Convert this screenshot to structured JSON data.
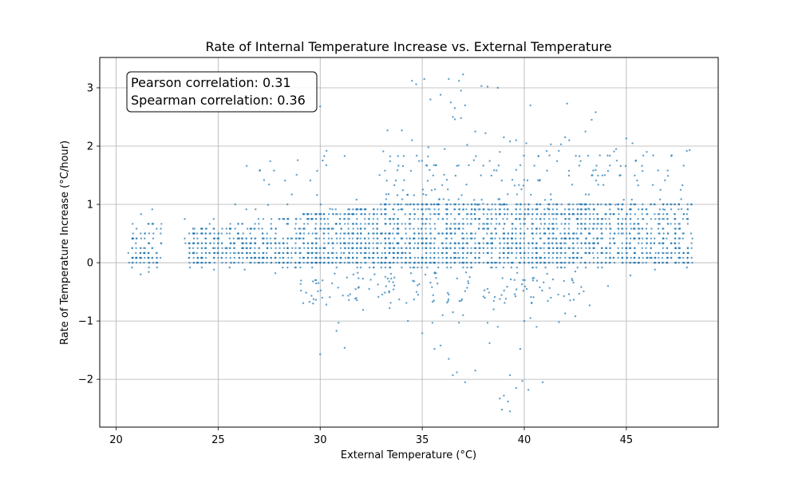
{
  "chart_data": {
    "type": "scatter",
    "title": "Rate of Internal Temperature Increase vs. External Temperature",
    "xlabel": "External Temperature (°C)",
    "ylabel": "Rate of Temperature Increase (°C/hour)",
    "xlim": [
      19.2,
      49.5
    ],
    "ylim": [
      -2.82,
      3.52
    ],
    "xticks": [
      20,
      25,
      30,
      35,
      40,
      45
    ],
    "yticks": [
      -2,
      -1,
      0,
      1,
      2,
      3
    ],
    "xtick_labels": [
      "20",
      "25",
      "30",
      "35",
      "40",
      "45"
    ],
    "ytick_labels": [
      "−2",
      "−1",
      "0",
      "1",
      "2",
      "3"
    ],
    "grid": true,
    "point_color": "#1f77b4",
    "annotation": {
      "line1": "Pearson correlation: 0.31",
      "line2": "Spearman correlation: 0.36",
      "placement": "top-left"
    },
    "series_distribution": {
      "x_ranges": [
        [
          20.6,
          22.2
        ],
        [
          23.4,
          48.2
        ]
      ],
      "y_levels_step": 0.0833,
      "dense_band": [
        0,
        1.0
      ]
    },
    "points": [
      [
        37.0,
        3.23
      ],
      [
        34.5,
        3.12
      ],
      [
        34.7,
        3.06
      ],
      [
        35.1,
        3.15
      ],
      [
        36.3,
        3.15
      ],
      [
        36.8,
        3.12
      ],
      [
        37.9,
        3.03
      ],
      [
        38.2,
        3.02
      ],
      [
        38.7,
        3.0
      ],
      [
        36.9,
        2.95
      ],
      [
        35.9,
        2.88
      ],
      [
        36.4,
        2.75
      ],
      [
        35.4,
        2.8
      ],
      [
        36.6,
        2.65
      ],
      [
        37.1,
        2.7
      ],
      [
        40.3,
        2.7
      ],
      [
        42.1,
        2.73
      ],
      [
        43.5,
        2.58
      ],
      [
        43.3,
        2.45
      ],
      [
        36.5,
        2.5
      ],
      [
        36.9,
        2.48
      ],
      [
        36.6,
        2.46
      ],
      [
        30.0,
        2.68
      ],
      [
        34.0,
        2.27
      ],
      [
        33.3,
        2.27
      ],
      [
        34.5,
        2.1
      ],
      [
        37.6,
        2.25
      ],
      [
        38.1,
        2.22
      ],
      [
        39.0,
        2.15
      ],
      [
        39.6,
        2.1
      ],
      [
        40.1,
        2.05
      ],
      [
        41.3,
        2.03
      ],
      [
        42.0,
        2.15
      ],
      [
        42.2,
        2.1
      ],
      [
        43.0,
        2.25
      ],
      [
        45.0,
        2.13
      ],
      [
        45.3,
        2.05
      ],
      [
        46.0,
        1.9
      ],
      [
        47.2,
        1.83
      ],
      [
        31.2,
        1.83
      ],
      [
        35.3,
        1.98
      ],
      [
        36.1,
        1.95
      ],
      [
        37.2,
        2.02
      ],
      [
        38.8,
        1.9
      ],
      [
        39.3,
        2.08
      ],
      [
        41.8,
        2.03
      ],
      [
        44.5,
        1.95
      ],
      [
        48.1,
        1.93
      ],
      [
        30.1,
        -0.6
      ],
      [
        30.3,
        -0.72
      ],
      [
        30.9,
        -1.03
      ],
      [
        30.8,
        -1.17
      ],
      [
        30.0,
        -1.57
      ],
      [
        31.2,
        -1.46
      ],
      [
        32.1,
        -0.81
      ],
      [
        33.4,
        -0.78
      ],
      [
        34.6,
        -0.63
      ],
      [
        34.3,
        -1.0
      ],
      [
        35.0,
        -1.21
      ],
      [
        35.5,
        -1.03
      ],
      [
        35.6,
        -1.48
      ],
      [
        35.9,
        -1.42
      ],
      [
        36.0,
        -0.9
      ],
      [
        36.3,
        -1.65
      ],
      [
        36.5,
        -1.93
      ],
      [
        36.7,
        -1.88
      ],
      [
        36.8,
        -1.03
      ],
      [
        36.5,
        -0.85
      ],
      [
        37.0,
        -0.9
      ],
      [
        37.1,
        -2.05
      ],
      [
        37.6,
        -1.85
      ],
      [
        38.2,
        -1.03
      ],
      [
        38.3,
        -1.38
      ],
      [
        38.5,
        -0.8
      ],
      [
        38.7,
        -1.1
      ],
      [
        38.8,
        -2.33
      ],
      [
        38.9,
        -2.52
      ],
      [
        39.0,
        -2.28
      ],
      [
        39.2,
        -2.38
      ],
      [
        39.3,
        -2.55
      ],
      [
        39.6,
        -2.15
      ],
      [
        39.3,
        -1.93
      ],
      [
        39.9,
        -2.03
      ],
      [
        40.2,
        -2.18
      ],
      [
        40.6,
        -1.1
      ],
      [
        40.9,
        -2.05
      ],
      [
        39.8,
        -1.48
      ],
      [
        40.0,
        -1.0
      ],
      [
        40.3,
        -0.95
      ],
      [
        41.7,
        -1.02
      ],
      [
        42.0,
        -0.87
      ],
      [
        42.5,
        -0.92
      ],
      [
        43.2,
        -0.73
      ],
      [
        39.1,
        -0.62
      ],
      [
        38.0,
        -0.58
      ],
      [
        37.2,
        -0.43
      ],
      [
        34.8,
        -0.55
      ],
      [
        32.4,
        -0.45
      ],
      [
        29.8,
        -0.3
      ],
      [
        27.8,
        -0.18
      ],
      [
        26.3,
        -0.12
      ],
      [
        24.8,
        -0.12
      ],
      [
        21.2,
        -0.2
      ],
      [
        21.6,
        -0.16
      ],
      [
        44.1,
        -0.4
      ],
      [
        45.2,
        -0.22
      ],
      [
        46.4,
        -0.12
      ],
      [
        38.2,
        -0.45
      ]
    ]
  }
}
